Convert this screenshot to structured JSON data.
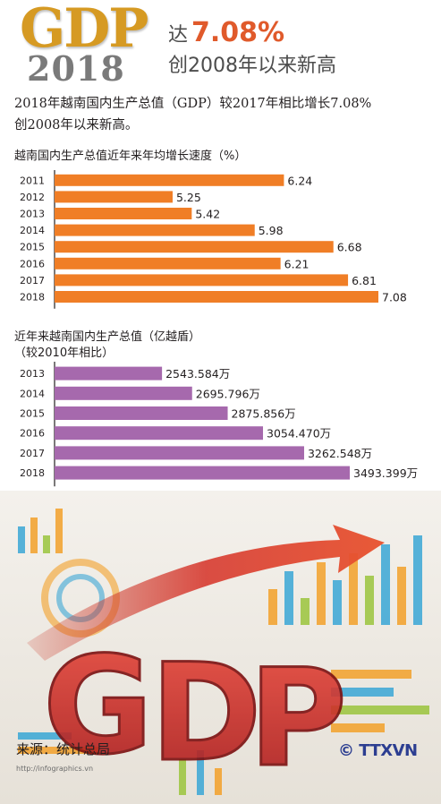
{
  "header": {
    "gdp": "GDP",
    "year": "2018",
    "verb": "达",
    "percent": "7.08%",
    "subtitle": "创2008年以来新高"
  },
  "intro": {
    "line1": "2018年越南国内生产总值（GDP）较2017年相比增长7.08%",
    "line2": "创2008年以来新高。"
  },
  "colors": {
    "bar_orange": "#f07e26",
    "bar_purple": "#a669ad",
    "headline_red": "#e05a2b",
    "gold": "#d69a23"
  },
  "chart_data": [
    {
      "type": "bar",
      "orientation": "horizontal",
      "title": "越南国内生产总值近年来年均增长速度（%）",
      "categories": [
        "2011",
        "2012",
        "2013",
        "2014",
        "2015",
        "2016",
        "2017",
        "2018"
      ],
      "values": [
        6.24,
        5.25,
        5.42,
        5.98,
        6.68,
        6.21,
        6.81,
        7.08
      ],
      "value_labels": [
        "6.24",
        "5.25",
        "5.42",
        "5.98",
        "6.68",
        "6.21",
        "6.81",
        "7.08"
      ]
    },
    {
      "type": "bar",
      "orientation": "horizontal",
      "title": "近年来越南国内生产总值（亿越盾）",
      "subtitle": "（较2010年相比）",
      "categories": [
        "2013",
        "2014",
        "2015",
        "2016",
        "2017",
        "2018"
      ],
      "values": [
        2543.584,
        2695.796,
        2875.856,
        3054.47,
        3262.548,
        3493.399
      ],
      "value_labels": [
        "2543.584万",
        "2695.796万",
        "2875.856万",
        "3054.470万",
        "3262.548万",
        "3493.399万"
      ]
    }
  ],
  "footer": {
    "source": "来源：统计总局",
    "agency": "© TTXVN",
    "url": "http://infographics.vn"
  }
}
